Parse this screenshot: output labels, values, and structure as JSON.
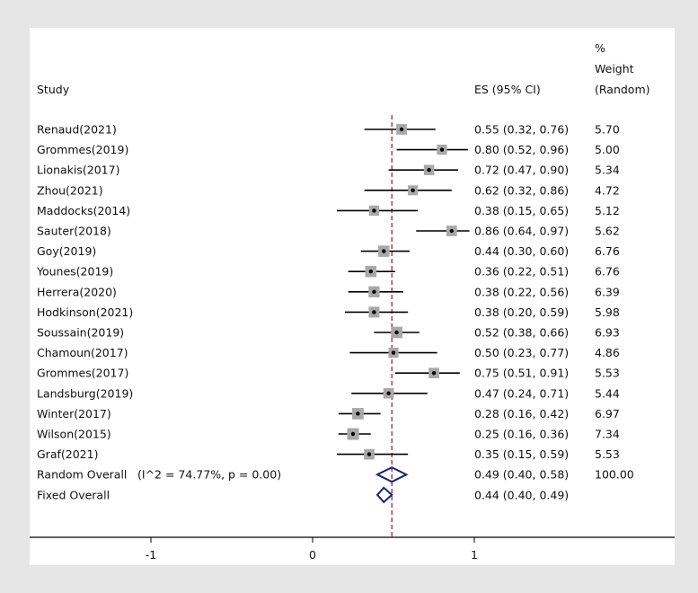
{
  "chart_data": {
    "type": "forest",
    "header": {
      "study": "Study",
      "es": "ES (95% CI)",
      "weight_lines": [
        "%",
        "Weight",
        "(Random)"
      ]
    },
    "studies": [
      {
        "name": "Renaud(2021)",
        "es": 0.55,
        "lo": 0.32,
        "hi": 0.76,
        "es_text": "0.55 (0.32, 0.76)",
        "weight": "5.70"
      },
      {
        "name": "Grommes(2019)",
        "es": 0.8,
        "lo": 0.52,
        "hi": 0.96,
        "es_text": "0.80 (0.52, 0.96)",
        "weight": "5.00"
      },
      {
        "name": "Lionakis(2017)",
        "es": 0.72,
        "lo": 0.47,
        "hi": 0.9,
        "es_text": "0.72 (0.47, 0.90)",
        "weight": "5.34"
      },
      {
        "name": "Zhou(2021)",
        "es": 0.62,
        "lo": 0.32,
        "hi": 0.86,
        "es_text": "0.62 (0.32, 0.86)",
        "weight": "4.72"
      },
      {
        "name": "Maddocks(2014)",
        "es": 0.38,
        "lo": 0.15,
        "hi": 0.65,
        "es_text": "0.38 (0.15, 0.65)",
        "weight": "5.12"
      },
      {
        "name": "Sauter(2018)",
        "es": 0.86,
        "lo": 0.64,
        "hi": 0.97,
        "es_text": "0.86 (0.64, 0.97)",
        "weight": "5.62"
      },
      {
        "name": "Goy(2019)",
        "es": 0.44,
        "lo": 0.3,
        "hi": 0.6,
        "es_text": "0.44 (0.30, 0.60)",
        "weight": "6.76"
      },
      {
        "name": "Younes(2019)",
        "es": 0.36,
        "lo": 0.22,
        "hi": 0.51,
        "es_text": "0.36 (0.22, 0.51)",
        "weight": "6.76"
      },
      {
        "name": "Herrera(2020)",
        "es": 0.38,
        "lo": 0.22,
        "hi": 0.56,
        "es_text": "0.38 (0.22, 0.56)",
        "weight": "6.39"
      },
      {
        "name": "Hodkinson(2021)",
        "es": 0.38,
        "lo": 0.2,
        "hi": 0.59,
        "es_text": "0.38 (0.20, 0.59)",
        "weight": "5.98"
      },
      {
        "name": "Soussain(2019)",
        "es": 0.52,
        "lo": 0.38,
        "hi": 0.66,
        "es_text": "0.52 (0.38, 0.66)",
        "weight": "6.93"
      },
      {
        "name": "Chamoun(2017)",
        "es": 0.5,
        "lo": 0.23,
        "hi": 0.77,
        "es_text": "0.50 (0.23, 0.77)",
        "weight": "4.86"
      },
      {
        "name": "Grommes(2017)",
        "es": 0.75,
        "lo": 0.51,
        "hi": 0.91,
        "es_text": "0.75 (0.51, 0.91)",
        "weight": "5.53"
      },
      {
        "name": "Landsburg(2019)",
        "es": 0.47,
        "lo": 0.24,
        "hi": 0.71,
        "es_text": "0.47 (0.24, 0.71)",
        "weight": "5.44"
      },
      {
        "name": "Winter(2017)",
        "es": 0.28,
        "lo": 0.16,
        "hi": 0.42,
        "es_text": "0.28 (0.16, 0.42)",
        "weight": "6.97"
      },
      {
        "name": "Wilson(2015)",
        "es": 0.25,
        "lo": 0.16,
        "hi": 0.36,
        "es_text": "0.25 (0.16, 0.36)",
        "weight": "7.34"
      },
      {
        "name": "Graf(2021)",
        "es": 0.35,
        "lo": 0.15,
        "hi": 0.59,
        "es_text": "0.35 (0.15, 0.59)",
        "weight": "5.53"
      }
    ],
    "overall": [
      {
        "name": "Random Overall",
        "stat": "(I^2 = 74.77%, p = 0.00)",
        "es": 0.49,
        "lo": 0.4,
        "hi": 0.58,
        "es_text": "0.49 (0.40, 0.58)",
        "weight": "100.00"
      },
      {
        "name": "Fixed Overall",
        "stat": "",
        "es": 0.44,
        "lo": 0.4,
        "hi": 0.49,
        "es_text": "0.44 (0.40, 0.49)",
        "weight": ""
      }
    ],
    "reference_line": 0.49,
    "x_ticks": [
      -1,
      0,
      1
    ],
    "x_tick_labels": [
      "-1",
      "0",
      "1"
    ],
    "xlim": [
      -1.75,
      2.25
    ],
    "colors": {
      "background": "#e6e6e6",
      "panel": "#ffffff",
      "ci_line": "#000000",
      "weight_box": "#a8a8a8",
      "diamond": "#1a237e",
      "reference_line": "#8b1a2b"
    }
  }
}
